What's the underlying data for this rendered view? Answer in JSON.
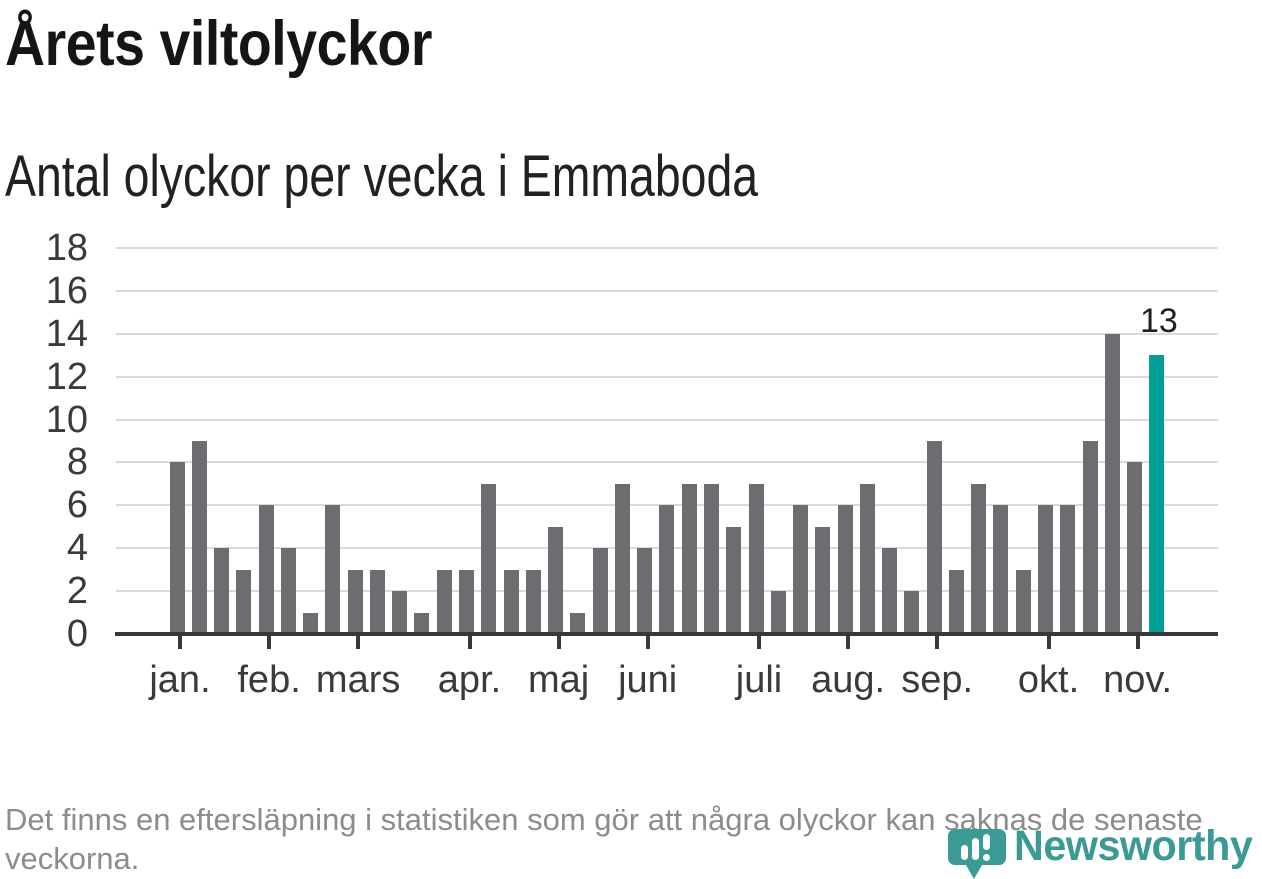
{
  "header": {
    "title": "Årets viltolyckor",
    "subtitle": "Antal olyckor per vecka i Emmaboda"
  },
  "chart_data": {
    "type": "bar",
    "title": "Årets viltolyckor",
    "subtitle": "Antal olyckor per vecka i Emmaboda",
    "x_unit": "week of year",
    "x_start_week": 1,
    "values": [
      8,
      9,
      4,
      3,
      6,
      4,
      1,
      6,
      3,
      3,
      2,
      1,
      3,
      3,
      7,
      3,
      3,
      5,
      1,
      4,
      7,
      4,
      6,
      7,
      7,
      5,
      7,
      2,
      6,
      5,
      6,
      7,
      4,
      2,
      9,
      3,
      7,
      6,
      3,
      6,
      6,
      9,
      14,
      8,
      13
    ],
    "highlight": {
      "index": 44,
      "value": 13,
      "label": "13",
      "color": "#00a098"
    },
    "bar_color": "#6c6c71",
    "ylim": [
      0,
      18
    ],
    "yticks": [
      0,
      2,
      4,
      6,
      8,
      10,
      12,
      14,
      16,
      18
    ],
    "grid": true,
    "gridline_color": "#dadada",
    "axis_color": "#383838",
    "legend": "none",
    "month_ticks": [
      {
        "label": "jan.",
        "week": 1
      },
      {
        "label": "feb.",
        "week": 5
      },
      {
        "label": "mars",
        "week": 9
      },
      {
        "label": "apr.",
        "week": 14
      },
      {
        "label": "maj",
        "week": 18
      },
      {
        "label": "juni",
        "week": 22
      },
      {
        "label": "juli",
        "week": 27
      },
      {
        "label": "aug.",
        "week": 31
      },
      {
        "label": "sep.",
        "week": 35
      },
      {
        "label": "okt.",
        "week": 40
      },
      {
        "label": "nov.",
        "week": 44
      }
    ]
  },
  "footer": {
    "note": "Det finns en eftersläpning i statistiken som gör att några olyckor kan saknas de senaste veckorna."
  },
  "logo": {
    "brand": "Newsworthy",
    "color": "#3b9a93",
    "icon": "newsworthy-pin-barchart-icon"
  }
}
